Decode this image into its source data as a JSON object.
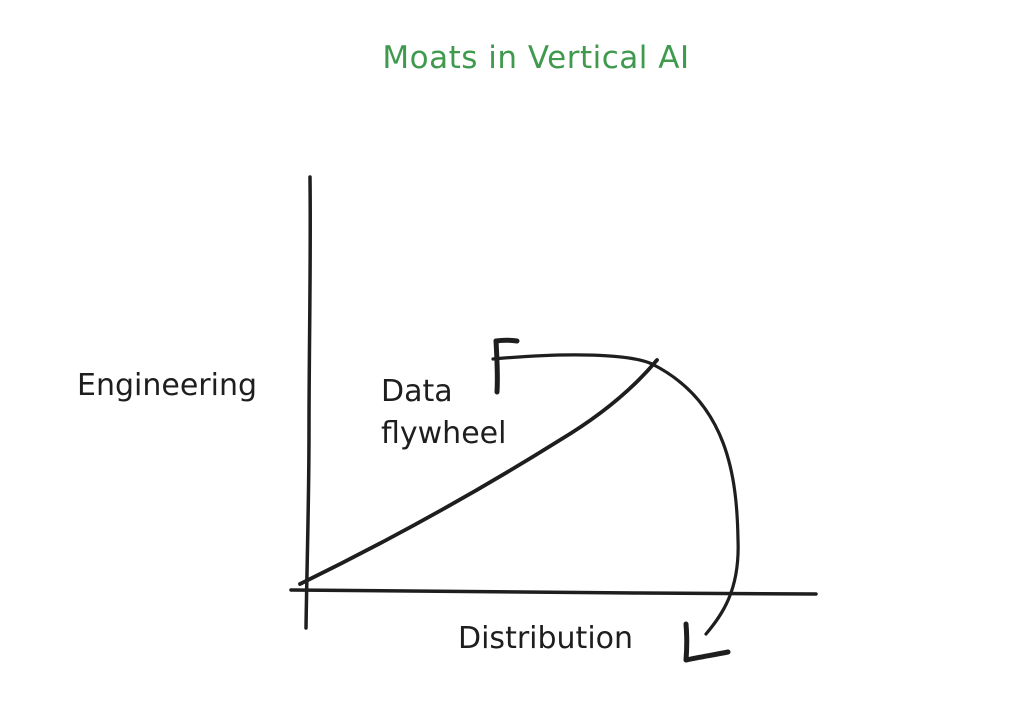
{
  "diagram": {
    "title": "Moats in Vertical AI",
    "labels": {
      "engineering": "Engineering",
      "data_flywheel_line1": "Data",
      "data_flywheel_line2": "flywheel",
      "distribution": "Distribution"
    },
    "colors": {
      "title": "#3f9a4e",
      "strokes": "#1e1e1e",
      "background": "#ffffff"
    }
  }
}
